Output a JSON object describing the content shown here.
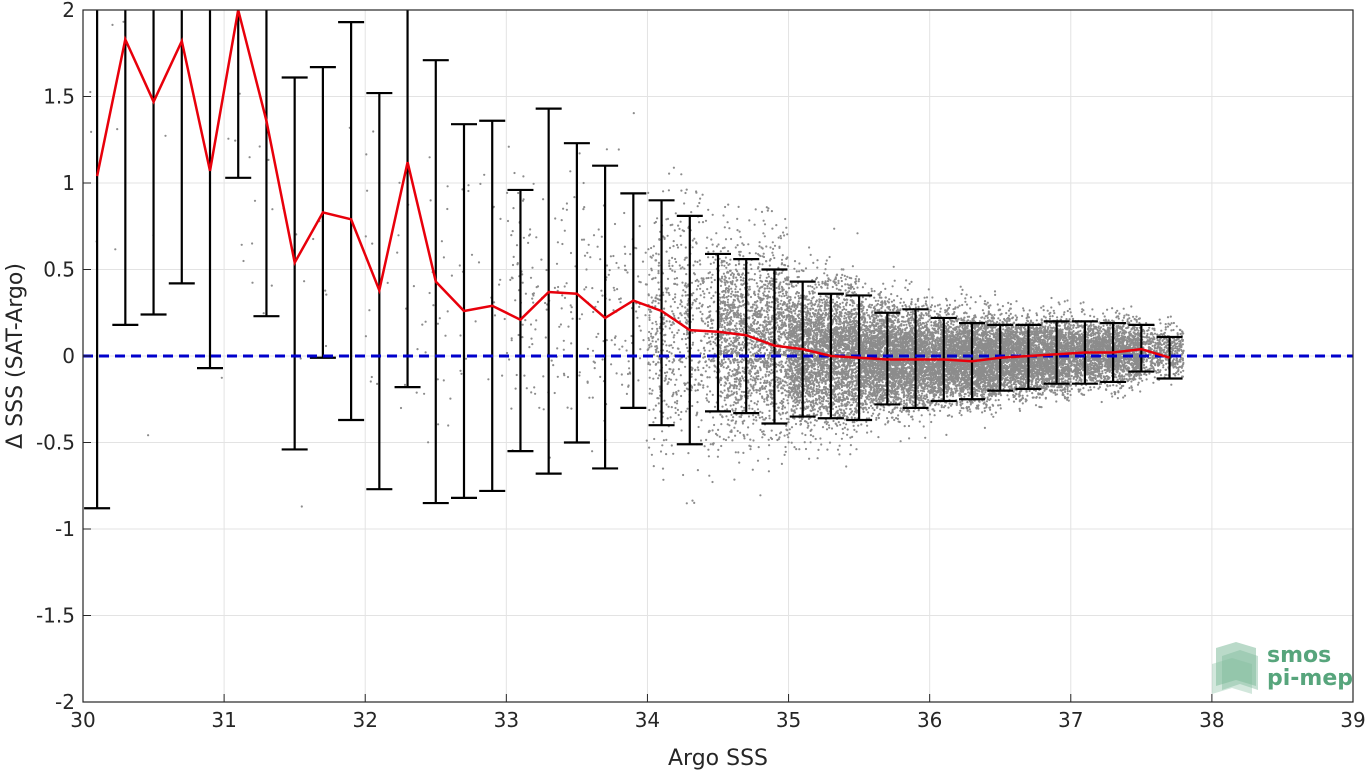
{
  "chart_data": {
    "type": "scatter",
    "xlabel": "Argo SSS",
    "ylabel": "Δ SSS (SAT-Argo)",
    "xlim": [
      30,
      39
    ],
    "ylim": [
      -2,
      2
    ],
    "xticks": [
      30,
      31,
      32,
      33,
      34,
      35,
      36,
      37,
      38,
      39
    ],
    "xtick_labels": [
      "30",
      "31",
      "32",
      "33",
      "34",
      "35",
      "36",
      "37",
      "38",
      "39"
    ],
    "yticks": [
      -2,
      -1.5,
      -1,
      -0.5,
      0,
      0.5,
      1,
      1.5,
      2
    ],
    "ytick_labels": [
      "-2",
      "-1.5",
      "-1",
      "-0.5",
      "0",
      "0.5",
      "1",
      "1.5",
      "2"
    ],
    "grid": true,
    "scatter_color": "#8c8c8c",
    "mean_line_color": "#e8000b",
    "zero_line_color": "#0000cc",
    "errorbar_color": "#000000",
    "zero_line_y": 0,
    "bins": {
      "x": [
        30.1,
        30.3,
        30.5,
        30.7,
        30.9,
        31.1,
        31.3,
        31.5,
        31.7,
        31.9,
        32.1,
        32.3,
        32.5,
        32.7,
        32.9,
        33.1,
        33.3,
        33.5,
        33.7,
        33.9,
        34.1,
        34.3,
        34.5,
        34.7,
        34.9,
        35.1,
        35.3,
        35.5,
        35.7,
        35.9,
        36.1,
        36.3,
        36.5,
        36.7,
        36.9,
        37.1,
        37.3,
        37.5,
        37.7
      ],
      "mean": [
        1.04,
        1.83,
        1.47,
        1.82,
        1.07,
        2.15,
        1.36,
        0.54,
        0.83,
        0.79,
        0.38,
        1.12,
        0.43,
        0.26,
        0.29,
        0.21,
        0.37,
        0.36,
        0.22,
        0.32,
        0.26,
        0.15,
        0.14,
        0.12,
        0.06,
        0.04,
        0.0,
        -0.01,
        -0.02,
        -0.02,
        -0.02,
        -0.03,
        -0.01,
        0.0,
        0.01,
        0.02,
        0.02,
        0.04,
        -0.01
      ],
      "lower": [
        -0.88,
        0.18,
        0.24,
        0.42,
        -0.07,
        1.03,
        0.23,
        -0.54,
        -0.01,
        -0.37,
        -0.77,
        -0.18,
        -0.85,
        -0.82,
        -0.78,
        -0.55,
        -0.68,
        -0.5,
        -0.65,
        -0.3,
        -0.4,
        -0.51,
        -0.32,
        -0.33,
        -0.39,
        -0.35,
        -0.36,
        -0.37,
        -0.28,
        -0.3,
        -0.26,
        -0.25,
        -0.2,
        -0.19,
        -0.16,
        -0.16,
        -0.15,
        -0.09,
        -0.13
      ],
      "upper": [
        2.0,
        2.0,
        2.0,
        2.0,
        2.0,
        2.0,
        2.0,
        1.61,
        1.67,
        1.93,
        1.52,
        2.0,
        1.71,
        1.34,
        1.36,
        0.96,
        1.43,
        1.23,
        1.1,
        0.94,
        0.9,
        0.81,
        0.59,
        0.56,
        0.5,
        0.43,
        0.36,
        0.35,
        0.25,
        0.27,
        0.22,
        0.19,
        0.18,
        0.18,
        0.2,
        0.2,
        0.19,
        0.18,
        0.11
      ]
    },
    "scatter_density": [
      {
        "x_from": 30.0,
        "x_to": 31.0,
        "center": 1.0,
        "spread": 0.9,
        "count": 12
      },
      {
        "x_from": 31.0,
        "x_to": 32.0,
        "center": 0.6,
        "spread": 0.7,
        "count": 25
      },
      {
        "x_from": 32.0,
        "x_to": 33.0,
        "center": 0.4,
        "spread": 0.6,
        "count": 70
      },
      {
        "x_from": 33.0,
        "x_to": 34.0,
        "center": 0.3,
        "spread": 0.5,
        "count": 260
      },
      {
        "x_from": 34.0,
        "x_to": 34.5,
        "center": 0.15,
        "spread": 0.45,
        "count": 700
      },
      {
        "x_from": 34.5,
        "x_to": 35.0,
        "center": 0.1,
        "spread": 0.35,
        "count": 1800
      },
      {
        "x_from": 35.0,
        "x_to": 35.5,
        "center": 0.02,
        "spread": 0.27,
        "count": 3000
      },
      {
        "x_from": 35.5,
        "x_to": 36.0,
        "center": -0.01,
        "spread": 0.2,
        "count": 3400
      },
      {
        "x_from": 36.0,
        "x_to": 36.5,
        "center": -0.02,
        "spread": 0.17,
        "count": 3400
      },
      {
        "x_from": 36.5,
        "x_to": 37.0,
        "center": 0.0,
        "spread": 0.14,
        "count": 3000
      },
      {
        "x_from": 37.0,
        "x_to": 37.5,
        "center": 0.02,
        "spread": 0.12,
        "count": 2200
      },
      {
        "x_from": 37.5,
        "x_to": 37.8,
        "center": 0.03,
        "spread": 0.1,
        "count": 500
      }
    ]
  },
  "logo": {
    "line1": "smos",
    "line2": "pi-mep",
    "color": "#57a57c"
  }
}
